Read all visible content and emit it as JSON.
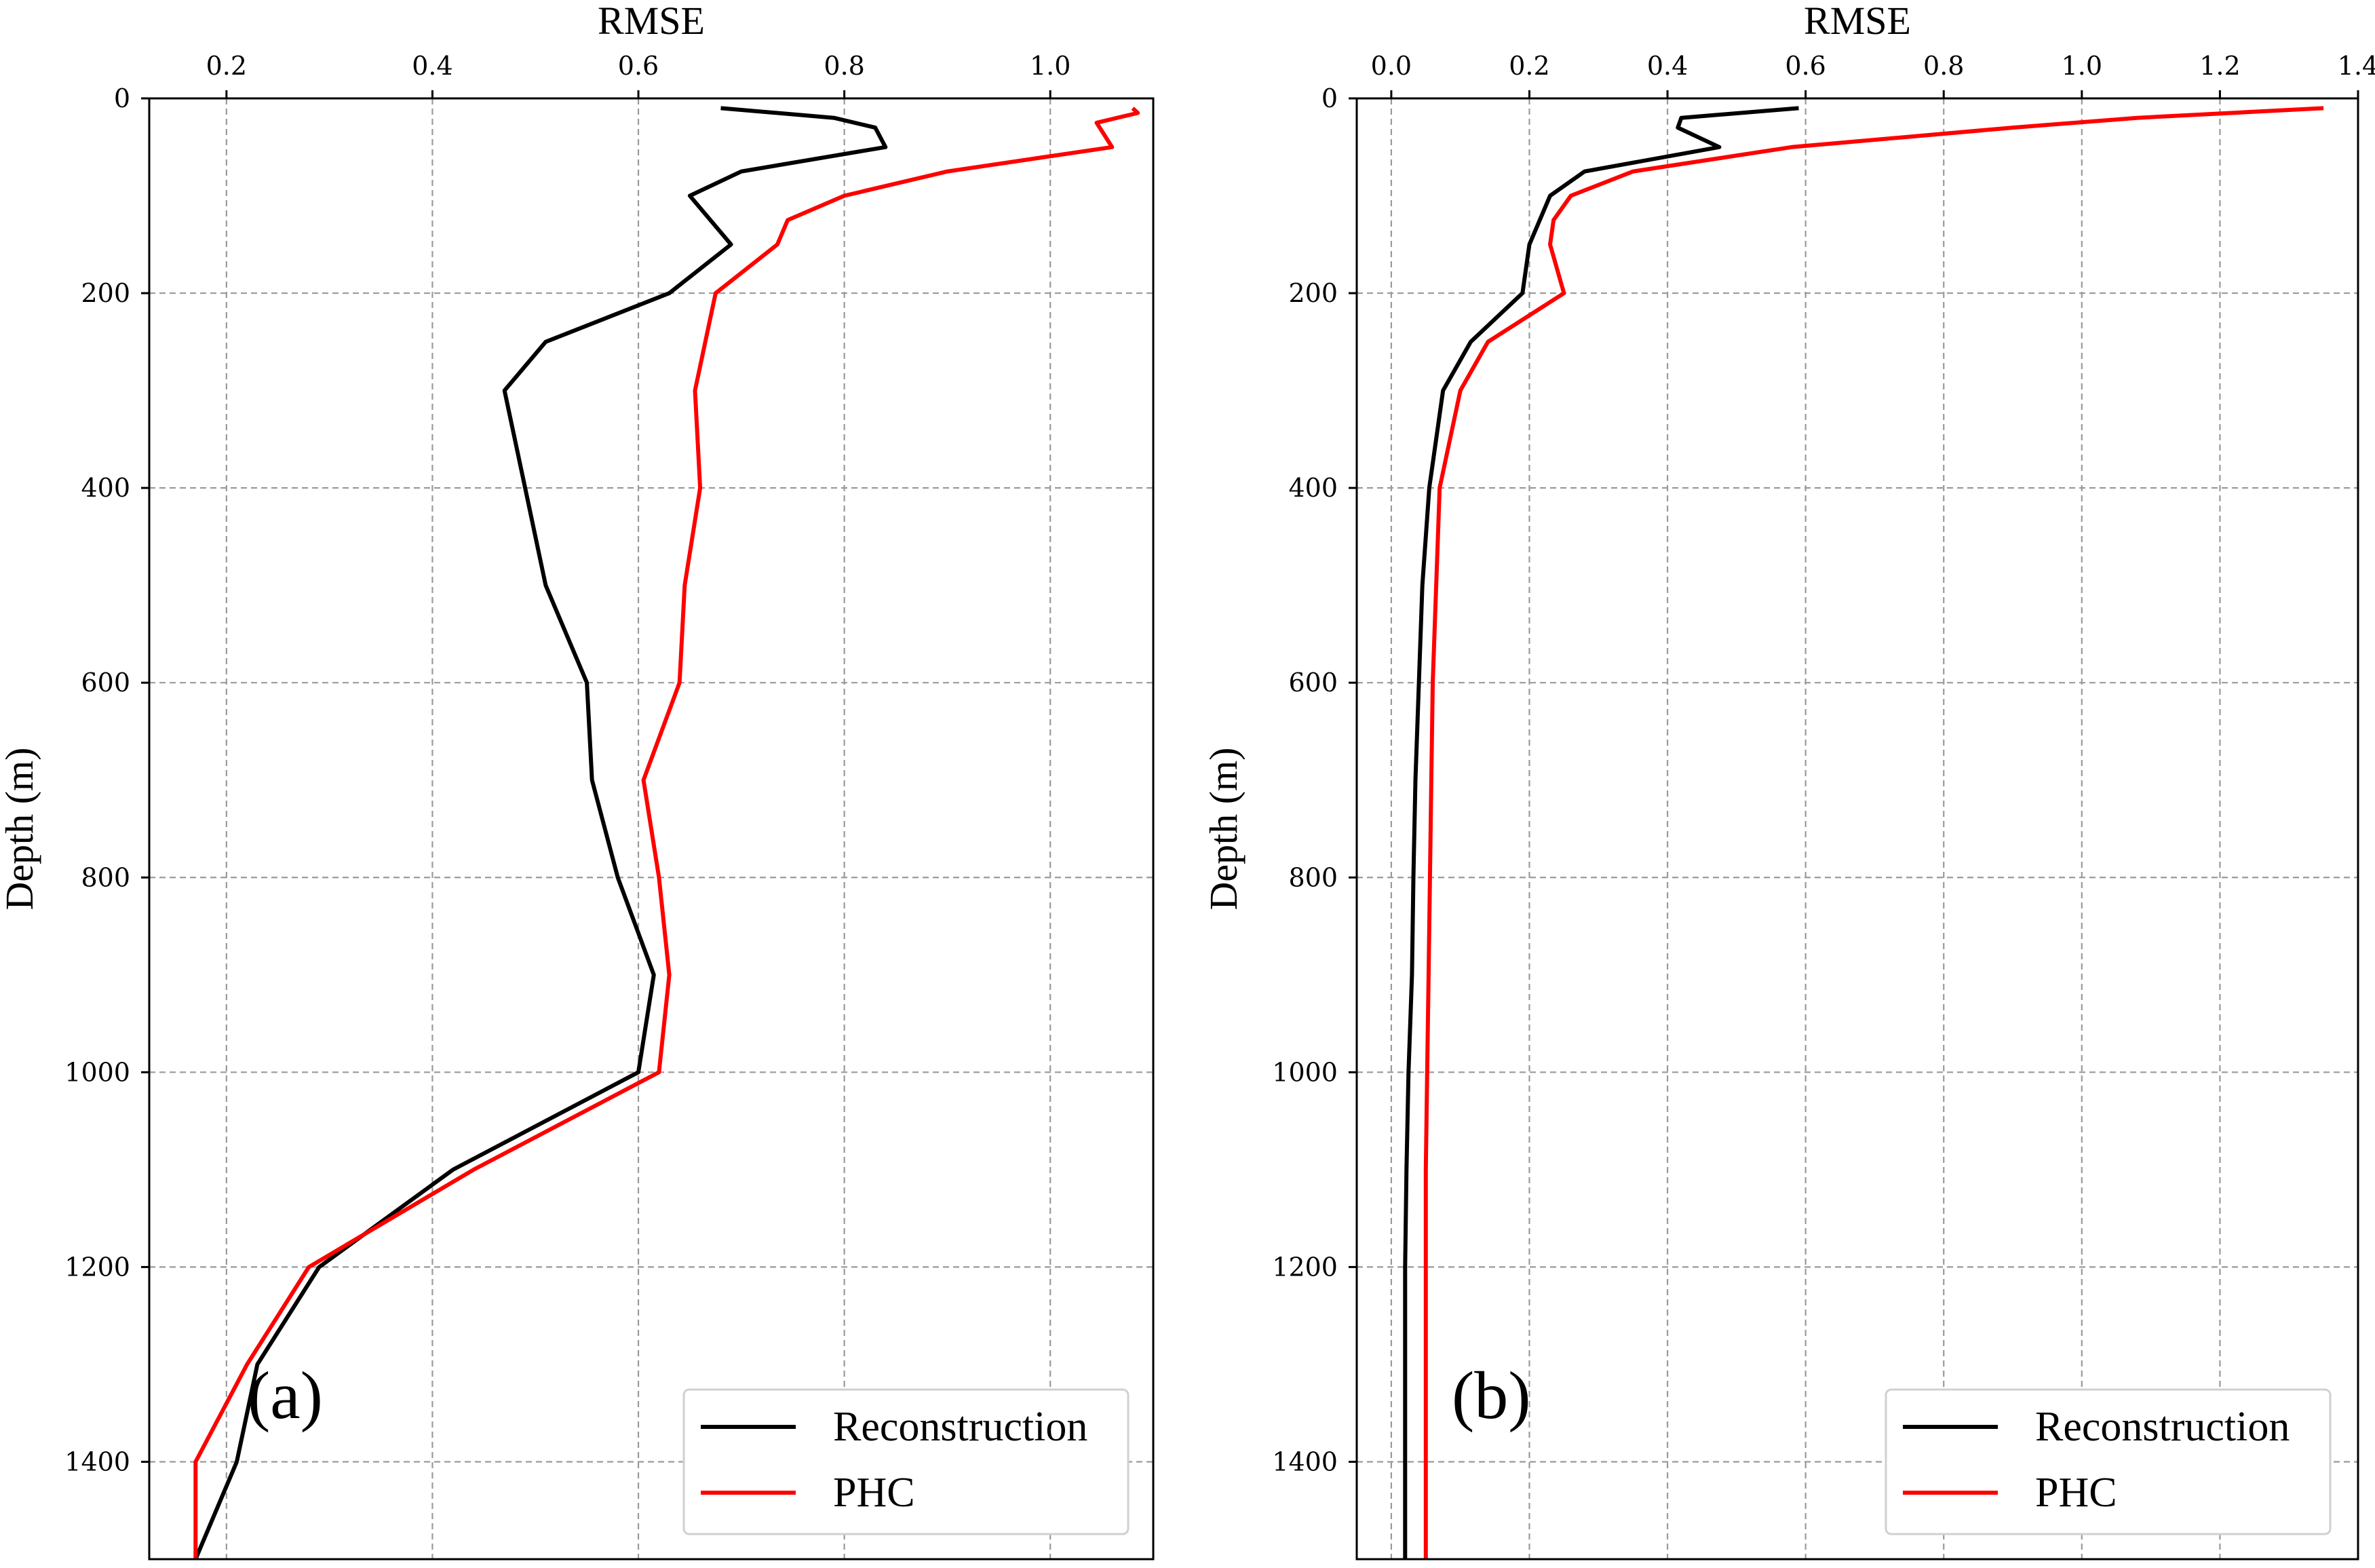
{
  "chart_data": [
    {
      "type": "line",
      "panel_label": "(a)",
      "xlabel": "RMSE",
      "ylabel": "Depth (m)",
      "xlim": [
        0.125,
        1.1
      ],
      "ylim": [
        1500,
        0
      ],
      "xticks": [
        0.2,
        0.4,
        0.6,
        0.8,
        1.0
      ],
      "xtick_labels": [
        "0.2",
        "0.4",
        "0.6",
        "0.8",
        "1.0"
      ],
      "yticks": [
        0,
        200,
        400,
        600,
        800,
        1000,
        1200,
        1400
      ],
      "ytick_labels": [
        "0",
        "200",
        "400",
        "600",
        "800",
        "1000",
        "1200",
        "1400"
      ],
      "grid": true,
      "legend_position": "lower-right",
      "series": [
        {
          "name": "Reconstruction",
          "color": "#000000",
          "x": [
            0.68,
            0.79,
            0.83,
            0.84,
            0.7,
            0.65,
            0.69,
            0.63,
            0.51,
            0.47,
            0.49,
            0.51,
            0.55,
            0.555,
            0.58,
            0.615,
            0.6,
            0.42,
            0.29,
            0.23,
            0.21,
            0.17
          ],
          "depth": [
            10,
            20,
            30,
            50,
            75,
            100,
            150,
            200,
            250,
            300,
            400,
            500,
            600,
            700,
            800,
            900,
            1000,
            1100,
            1200,
            1300,
            1400,
            1500
          ]
        },
        {
          "name": "PHC",
          "color": "#ff0000",
          "x": [
            1.08,
            1.085,
            1.045,
            1.06,
            0.9,
            0.8,
            0.745,
            0.735,
            0.675,
            0.665,
            0.655,
            0.66,
            0.645,
            0.64,
            0.605,
            0.62,
            0.63,
            0.62,
            0.44,
            0.28,
            0.22,
            0.17,
            0.17
          ],
          "depth": [
            10,
            15,
            25,
            50,
            75,
            100,
            125,
            150,
            200,
            250,
            300,
            400,
            500,
            600,
            700,
            800,
            900,
            1000,
            1100,
            1200,
            1300,
            1400,
            1500
          ]
        }
      ]
    },
    {
      "type": "line",
      "panel_label": "(b)",
      "xlabel": "RMSE",
      "ylabel": "Depth (m)",
      "xlim": [
        -0.05,
        1.4
      ],
      "ylim": [
        1500,
        0
      ],
      "xticks": [
        0.0,
        0.2,
        0.4,
        0.6,
        0.8,
        1.0,
        1.2,
        1.4
      ],
      "xtick_labels": [
        "0.0",
        "0.2",
        "0.4",
        "0.6",
        "0.8",
        "1.0",
        "1.2",
        "1.4"
      ],
      "yticks": [
        0,
        200,
        400,
        600,
        800,
        1000,
        1200,
        1400
      ],
      "ytick_labels": [
        "0",
        "200",
        "400",
        "600",
        "800",
        "1000",
        "1200",
        "1400"
      ],
      "grid": true,
      "legend_position": "lower-right",
      "series": [
        {
          "name": "Reconstruction",
          "color": "#000000",
          "x": [
            0.59,
            0.42,
            0.415,
            0.475,
            0.28,
            0.23,
            0.2,
            0.19,
            0.115,
            0.075,
            0.055,
            0.045,
            0.04,
            0.035,
            0.032,
            0.03,
            0.025,
            0.022,
            0.02,
            0.02,
            0.02,
            0.02
          ],
          "depth": [
            10,
            20,
            30,
            50,
            75,
            100,
            150,
            200,
            250,
            300,
            400,
            500,
            600,
            700,
            800,
            900,
            1000,
            1100,
            1200,
            1300,
            1400,
            1500
          ]
        },
        {
          "name": "PHC",
          "color": "#ff0000",
          "x": [
            1.35,
            1.08,
            0.9,
            0.58,
            0.35,
            0.26,
            0.235,
            0.23,
            0.25,
            0.14,
            0.1,
            0.07,
            0.065,
            0.06,
            0.058,
            0.056,
            0.054,
            0.052,
            0.05,
            0.05,
            0.05,
            0.05
          ],
          "depth": [
            10,
            20,
            30,
            50,
            75,
            100,
            125,
            150,
            200,
            250,
            300,
            400,
            500,
            600,
            700,
            800,
            900,
            1000,
            1100,
            1200,
            1300,
            1500
          ]
        }
      ]
    }
  ]
}
